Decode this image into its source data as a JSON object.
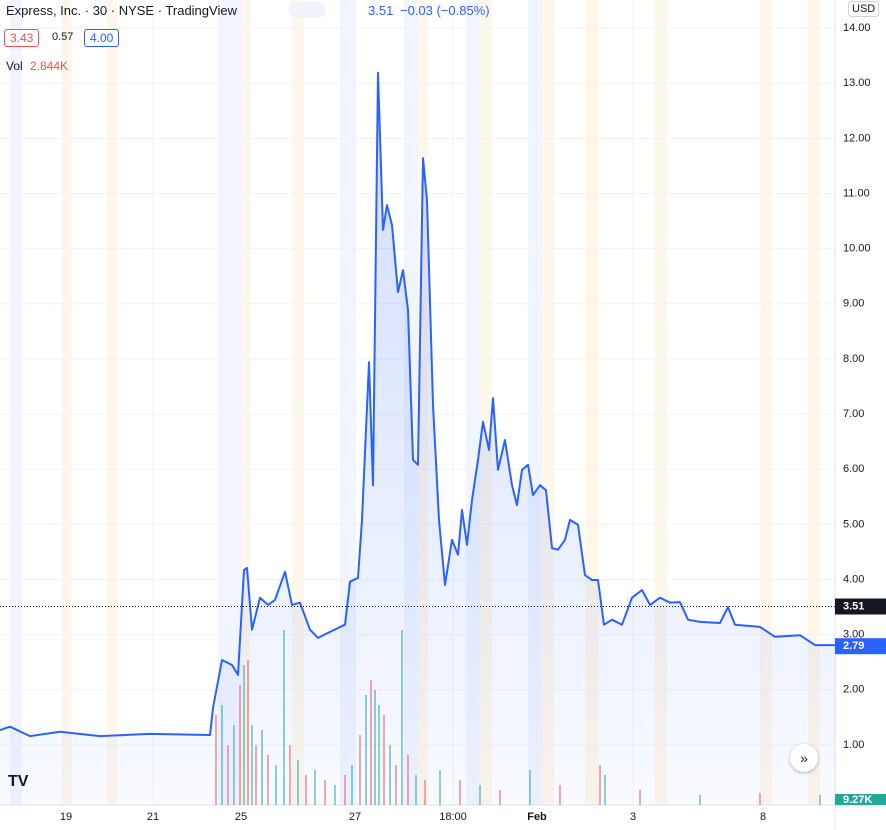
{
  "chart_data": {
    "type": "line",
    "title": "Express, Inc. · 30 · NYSE · TradingView",
    "last": "3.51",
    "change": "−0.03 (−0.85%)",
    "bid": "3.43",
    "spread": "0.57",
    "ask": "4.00",
    "volume_label": "Vol",
    "volume_value": "2.844K",
    "currency": "USD",
    "xlim": [
      0,
      835
    ],
    "xticks": [
      {
        "value": 66,
        "label": "19"
      },
      {
        "value": 153,
        "label": "21"
      },
      {
        "value": 241,
        "label": "25"
      },
      {
        "value": 355,
        "label": "27"
      },
      {
        "value": 453,
        "label": "18:00"
      },
      {
        "value": 537,
        "label": "Feb"
      },
      {
        "value": 633,
        "label": "3"
      },
      {
        "value": 763,
        "label": "8"
      }
    ],
    "ylim": [
      -0.09,
      14.51
    ],
    "yticks": [
      {
        "value": 1,
        "label": "1.00"
      },
      {
        "value": 2,
        "label": "2.00"
      },
      {
        "value": 3,
        "label": "3.00"
      },
      {
        "value": 4,
        "label": "4.00"
      },
      {
        "value": 5,
        "label": "5.00"
      },
      {
        "value": 6,
        "label": "6.00"
      },
      {
        "value": 7,
        "label": "7.00"
      },
      {
        "value": 8,
        "label": "8.00"
      },
      {
        "value": 9,
        "label": "9.00"
      },
      {
        "value": 10,
        "label": "10.00"
      },
      {
        "value": 11,
        "label": "11.00"
      },
      {
        "value": 12,
        "label": "12.00"
      },
      {
        "value": 13,
        "label": "13.00"
      },
      {
        "value": 14,
        "label": "14.00"
      }
    ],
    "grid": true,
    "x": [
      0,
      10,
      30,
      60,
      100,
      150,
      210,
      213,
      222,
      232,
      238,
      244,
      247,
      252,
      260,
      268,
      275,
      285,
      292,
      300,
      310,
      318,
      330,
      345,
      350,
      358,
      362,
      369,
      373,
      378,
      383,
      387,
      392,
      398,
      403,
      408,
      413,
      418,
      423,
      427,
      433,
      439,
      445,
      452,
      458,
      462,
      467,
      472,
      478,
      483,
      489,
      493,
      498,
      505,
      512,
      517,
      522,
      528,
      533,
      540,
      546,
      552,
      558,
      565,
      570,
      578,
      585,
      592,
      598,
      604,
      612,
      622,
      632,
      642,
      650,
      660,
      670,
      680,
      688,
      700,
      720,
      728,
      735,
      760,
      775,
      800,
      815,
      835
    ],
    "series": [
      {
        "color": "#2962ff",
        "values": [
          1.27,
          1.33,
          1.16,
          1.24,
          1.16,
          1.2,
          1.18,
          1.67,
          2.54,
          2.45,
          2.27,
          4.17,
          4.21,
          3.09,
          3.67,
          3.54,
          3.63,
          4.14,
          3.54,
          3.58,
          3.09,
          2.94,
          3.05,
          3.18,
          3.96,
          4.03,
          5.08,
          7.94,
          5.71,
          13.19,
          10.34,
          10.79,
          10.43,
          9.21,
          9.61,
          8.89,
          6.17,
          6.08,
          11.64,
          10.88,
          7.17,
          5.08,
          3.9,
          4.72,
          4.45,
          5.26,
          4.63,
          5.44,
          6.17,
          6.86,
          6.35,
          7.29,
          5.99,
          6.53,
          5.71,
          5.35,
          5.99,
          6.08,
          5.53,
          5.71,
          5.62,
          4.57,
          4.54,
          4.72,
          5.08,
          4.99,
          4.08,
          3.99,
          3.99,
          3.18,
          3.27,
          3.18,
          3.67,
          3.81,
          3.54,
          3.67,
          3.58,
          3.59,
          3.27,
          3.23,
          3.21,
          3.5,
          3.18,
          3.14,
          2.96,
          2.99,
          2.81,
          2.81
        ]
      }
    ],
    "price_markers": [
      {
        "value": 3.51,
        "color": "#131722"
      },
      {
        "value": 2.79,
        "color": "#2962ff"
      }
    ],
    "volume": {
      "axis_label": "9.27K",
      "ylim": [
        0,
        1000
      ],
      "up_color": "#26a69a",
      "down_color": "#ef5350",
      "x": [
        216,
        222,
        228,
        234,
        240,
        244,
        248,
        252,
        256,
        262,
        268,
        276,
        284,
        290,
        298,
        306,
        315,
        325,
        335,
        345,
        352,
        360,
        366,
        371,
        375,
        379,
        384,
        390,
        396,
        402,
        408,
        416,
        425,
        440,
        460,
        480,
        500,
        530,
        560,
        600,
        605,
        640,
        700,
        760,
        820
      ],
      "values": [
        450,
        500,
        300,
        400,
        600,
        700,
        725,
        400,
        300,
        375,
        250,
        200,
        875,
        300,
        225,
        150,
        175,
        125,
        100,
        150,
        200,
        350,
        550,
        625,
        575,
        500,
        450,
        300,
        200,
        875,
        250,
        150,
        125,
        175,
        125,
        100,
        75,
        175,
        100,
        200,
        150,
        75,
        50,
        60,
        50
      ],
      "up": [
        false,
        true,
        false,
        true,
        false,
        true,
        false,
        true,
        false,
        true,
        false,
        true,
        true,
        false,
        true,
        false,
        true,
        false,
        true,
        false,
        true,
        false,
        true,
        false,
        true,
        true,
        false,
        true,
        false,
        true,
        false,
        true,
        false,
        true,
        false,
        true,
        false,
        true,
        false,
        false,
        true,
        false,
        true,
        false,
        true
      ]
    }
  }
}
